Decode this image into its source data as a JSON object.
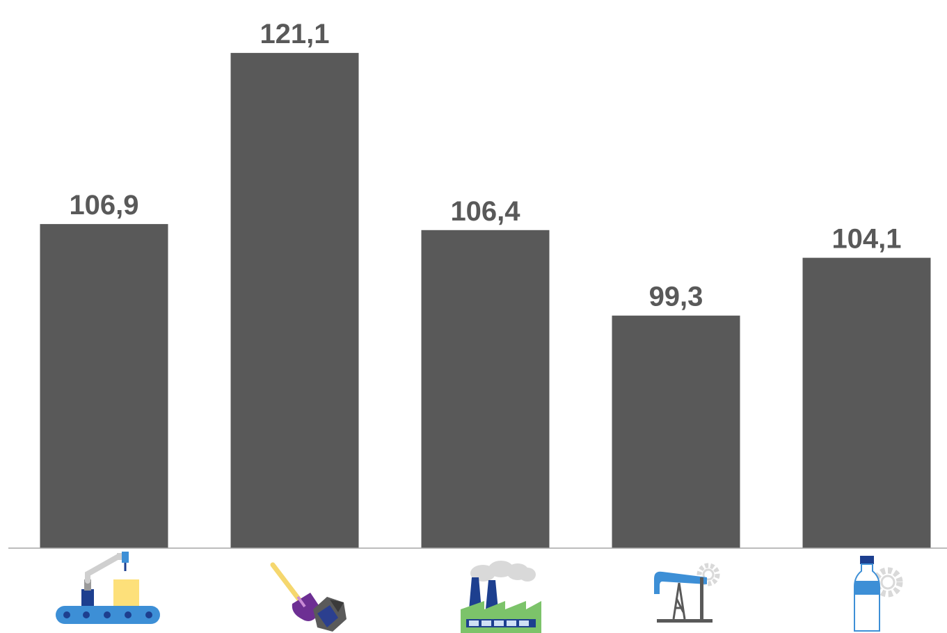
{
  "chart_data": {
    "type": "bar",
    "title": "",
    "xlabel": "",
    "ylabel": "",
    "grid": false,
    "ylim": [
      80,
      125
    ],
    "categories": [
      {
        "icon": "conveyor-robot-arm-icon"
      },
      {
        "icon": "shovel-coal-icon"
      },
      {
        "icon": "factory-smokestacks-icon"
      },
      {
        "icon": "oil-pump-jack-icon"
      },
      {
        "icon": "water-bottle-gear-icon"
      }
    ],
    "values": [
      106.9,
      121.1,
      106.4,
      99.3,
      104.1
    ],
    "value_labels": [
      "106,9",
      "121,1",
      "106,4",
      "99,3",
      "104,1"
    ]
  },
  "colors": {
    "bar": "#595959",
    "label": "#595959",
    "axis": "#a6a6a6"
  }
}
